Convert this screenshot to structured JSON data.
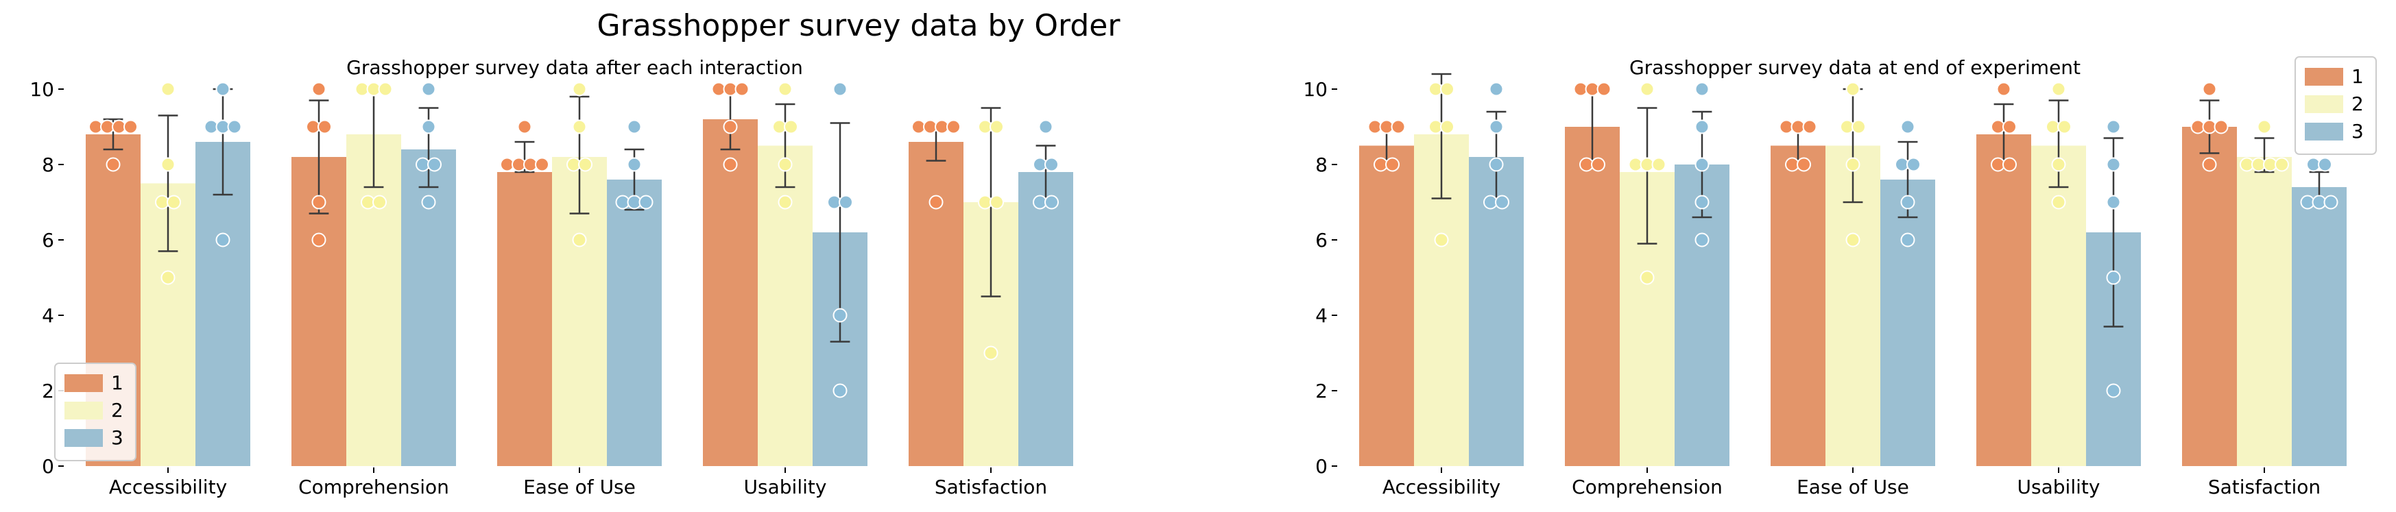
{
  "chart_data": {
    "type": "bar",
    "title": "Grasshopper survey data by Order",
    "legend": [
      "1",
      "2",
      "3"
    ],
    "colors": {
      "1": "#e3956a",
      "2": "#f6f5c4",
      "3": "#9bbfd2"
    },
    "point_colors": {
      "1": "#ef8c57",
      "2": "#f8f39a",
      "3": "#8dbdd8"
    },
    "errorbar_color": "#3a3a3a",
    "grid": false,
    "ylim": [
      0,
      10
    ],
    "yticks": [
      "0",
      "2",
      "4",
      "6",
      "8",
      "10"
    ],
    "categories": [
      "Accessibility",
      "Comprehension",
      "Ease of Use",
      "Usability",
      "Satisfaction"
    ],
    "panels": [
      {
        "title": "Grasshopper survey data after each interaction",
        "legend_position": "lower-left",
        "series": [
          {
            "name": "1",
            "values": [
              8.8,
              8.2,
              7.8,
              9.2,
              8.6
            ],
            "err_low": [
              8.4,
              6.7,
              7.8,
              8.4,
              8.1
            ],
            "err_high": [
              9.2,
              9.7,
              8.6,
              10.0,
              9.0
            ],
            "points": [
              [
                9,
                9,
                9,
                9,
                8
              ],
              [
                10,
                9,
                9,
                7,
                6
              ],
              [
                8,
                8,
                8,
                8,
                9
              ],
              [
                10,
                10,
                10,
                9,
                8
              ],
              [
                9,
                9,
                9,
                9,
                7
              ]
            ]
          },
          {
            "name": "2",
            "values": [
              7.5,
              8.8,
              8.2,
              8.5,
              7.0
            ],
            "err_low": [
              5.7,
              7.4,
              6.7,
              7.4,
              4.5
            ],
            "err_high": [
              9.3,
              10.0,
              9.8,
              9.6,
              9.5
            ],
            "points": [
              [
                10,
                8,
                7,
                7,
                5
              ],
              [
                10,
                10,
                10,
                7,
                7
              ],
              [
                10,
                9,
                8,
                8,
                6
              ],
              [
                10,
                9,
                9,
                8,
                7
              ],
              [
                9,
                9,
                7,
                7,
                3
              ]
            ]
          },
          {
            "name": "3",
            "values": [
              8.6,
              8.4,
              7.6,
              6.2,
              7.8
            ],
            "err_low": [
              7.2,
              7.4,
              6.8,
              3.3,
              7.0
            ],
            "err_high": [
              10.0,
              9.5,
              8.4,
              9.1,
              8.5
            ],
            "points": [
              [
                10,
                9,
                9,
                9,
                6
              ],
              [
                10,
                9,
                8,
                8,
                7
              ],
              [
                9,
                7,
                7,
                7,
                8
              ],
              [
                10,
                7,
                7,
                4,
                2
              ],
              [
                9,
                8,
                8,
                7,
                7
              ]
            ]
          }
        ]
      },
      {
        "title": "Grasshopper survey data at end of experiment",
        "legend_position": "upper-right",
        "series": [
          {
            "name": "1",
            "values": [
              8.5,
              9.0,
              8.5,
              8.8,
              9.0
            ],
            "err_low": [
              8.0,
              8.0,
              8.0,
              7.9,
              8.3
            ],
            "err_high": [
              9.0,
              10.0,
              9.0,
              9.6,
              9.7
            ],
            "points": [
              [
                9,
                9,
                9,
                8,
                8
              ],
              [
                10,
                10,
                10,
                8,
                8
              ],
              [
                9,
                9,
                9,
                8,
                8
              ],
              [
                10,
                9,
                9,
                8,
                8
              ],
              [
                10,
                9,
                9,
                9,
                8
              ]
            ]
          },
          {
            "name": "2",
            "values": [
              8.8,
              7.8,
              8.5,
              8.5,
              8.2
            ],
            "err_low": [
              7.1,
              5.9,
              7.0,
              7.4,
              7.8
            ],
            "err_high": [
              10.4,
              9.5,
              10.0,
              9.7,
              8.7
            ],
            "points": [
              [
                10,
                10,
                9,
                9,
                6
              ],
              [
                10,
                8,
                8,
                8,
                5
              ],
              [
                10,
                9,
                9,
                8,
                6
              ],
              [
                10,
                9,
                9,
                8,
                7
              ],
              [
                9,
                8,
                8,
                8,
                8
              ]
            ]
          },
          {
            "name": "3",
            "values": [
              8.2,
              8.0,
              7.6,
              6.2,
              7.4
            ],
            "err_low": [
              7.0,
              6.6,
              6.6,
              3.7,
              7.0
            ],
            "err_high": [
              9.4,
              9.4,
              8.6,
              8.7,
              7.8
            ],
            "points": [
              [
                10,
                9,
                8,
                7,
                7
              ],
              [
                10,
                9,
                8,
                7,
                6
              ],
              [
                9,
                8,
                8,
                7,
                6
              ],
              [
                9,
                8,
                7,
                5,
                2
              ],
              [
                8,
                8,
                7,
                7,
                7
              ]
            ]
          }
        ]
      }
    ]
  }
}
